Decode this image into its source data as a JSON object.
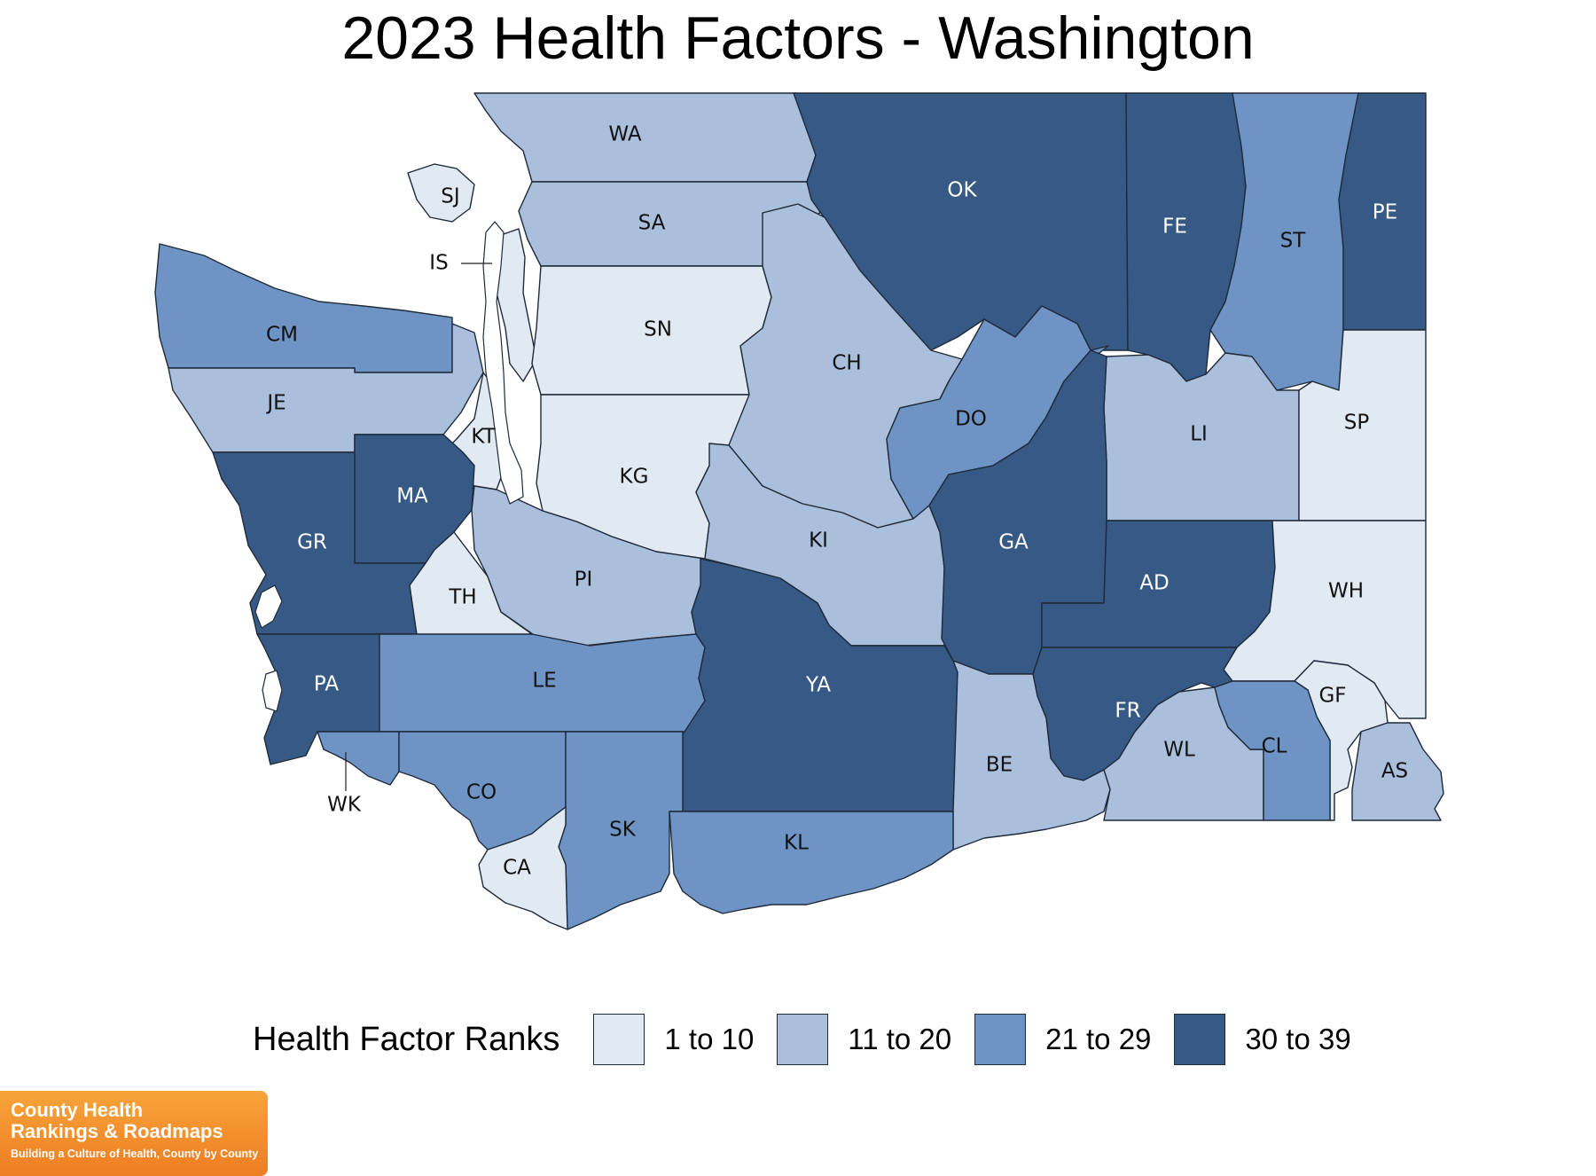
{
  "title": "2023 Health Factors - Washington",
  "legend": {
    "title": "Health Factor Ranks",
    "bins": [
      {
        "label": "1 to 10",
        "color": "#e1e9f3"
      },
      {
        "label": "11 to 20",
        "color": "#a9bfdc"
      },
      {
        "label": "21 to 29",
        "color": "#6d94c4"
      },
      {
        "label": "30 to 39",
        "color": "#365a85"
      }
    ]
  },
  "counties": [
    {
      "code": "WA",
      "bin": 1
    },
    {
      "code": "SJ",
      "bin": 0
    },
    {
      "code": "IS",
      "bin": 0
    },
    {
      "code": "SA",
      "bin": 1
    },
    {
      "code": "SN",
      "bin": 0
    },
    {
      "code": "OK",
      "bin": 3
    },
    {
      "code": "FE",
      "bin": 3
    },
    {
      "code": "ST",
      "bin": 2
    },
    {
      "code": "PE",
      "bin": 3
    },
    {
      "code": "CM",
      "bin": 2
    },
    {
      "code": "JE",
      "bin": 1
    },
    {
      "code": "KT",
      "bin": 0
    },
    {
      "code": "KG",
      "bin": 0
    },
    {
      "code": "CH",
      "bin": 1
    },
    {
      "code": "DO",
      "bin": 2
    },
    {
      "code": "LI",
      "bin": 1
    },
    {
      "code": "SP",
      "bin": 0
    },
    {
      "code": "MA",
      "bin": 3
    },
    {
      "code": "GR",
      "bin": 3
    },
    {
      "code": "TH",
      "bin": 0
    },
    {
      "code": "PI",
      "bin": 1
    },
    {
      "code": "KI",
      "bin": 1
    },
    {
      "code": "GA",
      "bin": 3
    },
    {
      "code": "AD",
      "bin": 3
    },
    {
      "code": "WH",
      "bin": 0
    },
    {
      "code": "PA",
      "bin": 3
    },
    {
      "code": "LE",
      "bin": 2
    },
    {
      "code": "YA",
      "bin": 3
    },
    {
      "code": "FR",
      "bin": 3
    },
    {
      "code": "GF",
      "bin": 0
    },
    {
      "code": "BE",
      "bin": 1
    },
    {
      "code": "WL",
      "bin": 1
    },
    {
      "code": "CL",
      "bin": 2
    },
    {
      "code": "AS",
      "bin": 1
    },
    {
      "code": "WK",
      "bin": 2
    },
    {
      "code": "CO",
      "bin": 2
    },
    {
      "code": "SK",
      "bin": 2
    },
    {
      "code": "KL",
      "bin": 2
    },
    {
      "code": "CA",
      "bin": 0
    }
  ],
  "logo": {
    "line1": "County Health",
    "line2": "Rankings & Roadmaps",
    "tagline": "Building a Culture of Health, County by County"
  }
}
